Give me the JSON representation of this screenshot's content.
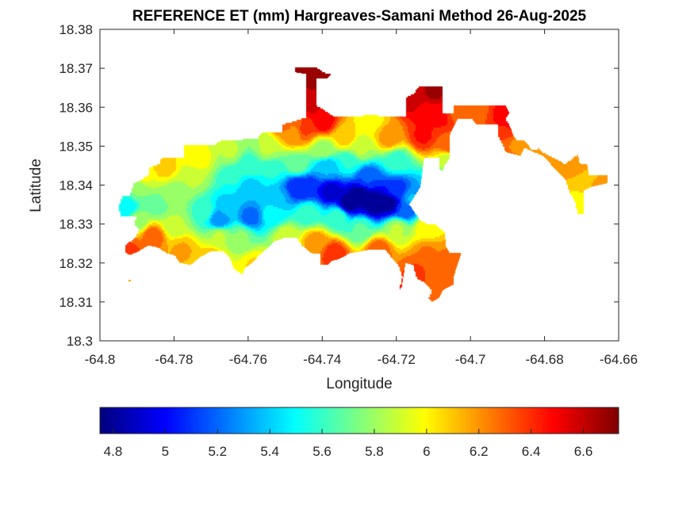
{
  "chart_data": {
    "type": "heatmap",
    "title": "REFERENCE ET (mm) Hargreaves-Samani Method  26-Aug-2025",
    "xlabel": "Longitude",
    "ylabel": "Latitude",
    "xlim": [
      -64.8,
      -64.66
    ],
    "ylim": [
      18.3,
      18.38
    ],
    "xticks": [
      -64.8,
      -64.78,
      -64.76,
      -64.74,
      -64.72,
      -64.7,
      -64.68,
      -64.66
    ],
    "xtick_labels": [
      "-64.8",
      "-64.78",
      "-64.76",
      "-64.74",
      "-64.72",
      "-64.7",
      "-64.68",
      "-64.66"
    ],
    "yticks": [
      18.3,
      18.31,
      18.32,
      18.33,
      18.34,
      18.35,
      18.36,
      18.37,
      18.38
    ],
    "ytick_labels": [
      "18.3",
      "18.31",
      "18.32",
      "18.33",
      "18.34",
      "18.35",
      "18.36",
      "18.37",
      "18.38"
    ],
    "grid": false,
    "colormap": "jet",
    "colorbar": {
      "orientation": "horizontal",
      "placement": "bottom",
      "range": [
        4.75,
        6.735
      ],
      "ticks": [
        4.8,
        5,
        5.2,
        5.4,
        5.6,
        5.8,
        6,
        6.2,
        6.4,
        6.6
      ],
      "tick_labels": [
        "4.8",
        "5",
        "5.2",
        "5.4",
        "5.6",
        "5.8",
        "6",
        "6.2",
        "6.4",
        "6.6"
      ]
    },
    "contour_levels": 20,
    "value_range_observed": [
      4.75,
      6.73
    ],
    "points": [
      [
        -64.795,
        18.3365,
        5.55
      ],
      [
        -64.793,
        18.3345,
        5.45
      ],
      [
        -64.79,
        18.339,
        5.75
      ],
      [
        -64.79,
        18.331,
        5.8
      ],
      [
        -64.792,
        18.3235,
        6.35
      ],
      [
        -64.786,
        18.327,
        6.3
      ],
      [
        -64.788,
        18.3425,
        5.95
      ],
      [
        -64.783,
        18.345,
        6.1
      ],
      [
        -64.785,
        18.335,
        5.7
      ],
      [
        -64.78,
        18.338,
        5.8
      ],
      [
        -64.78,
        18.33,
        5.85
      ],
      [
        -64.778,
        18.3235,
        6.15
      ],
      [
        -64.774,
        18.347,
        6.0
      ],
      [
        -64.775,
        18.342,
        5.85
      ],
      [
        -64.772,
        18.3335,
        5.6
      ],
      [
        -64.768,
        18.3315,
        5.25
      ],
      [
        -64.766,
        18.3345,
        5.4
      ],
      [
        -64.768,
        18.327,
        5.85
      ],
      [
        -64.77,
        18.3215,
        6.1
      ],
      [
        -64.765,
        18.349,
        5.85
      ],
      [
        -64.764,
        18.342,
        5.55
      ],
      [
        -64.76,
        18.3455,
        5.6
      ],
      [
        -64.76,
        18.339,
        5.35
      ],
      [
        -64.7595,
        18.332,
        5.2
      ],
      [
        -64.762,
        18.327,
        5.75
      ],
      [
        -64.758,
        18.3195,
        6.05
      ],
      [
        -64.755,
        18.3495,
        5.85
      ],
      [
        -64.754,
        18.344,
        5.55
      ],
      [
        -64.752,
        18.337,
        5.35
      ],
      [
        -64.7535,
        18.3325,
        5.5
      ],
      [
        -64.75,
        18.327,
        5.9
      ],
      [
        -64.748,
        18.3535,
        6.2
      ],
      [
        -64.747,
        18.3455,
        5.7
      ],
      [
        -64.747,
        18.3395,
        5.05
      ],
      [
        -64.744,
        18.3395,
        5.05
      ],
      [
        -64.744,
        18.333,
        5.6
      ],
      [
        -64.742,
        18.3255,
        6.2
      ],
      [
        -64.74,
        18.3495,
        5.8
      ],
      [
        -64.739,
        18.3445,
        5.35
      ],
      [
        -64.738,
        18.3385,
        4.9
      ],
      [
        -64.736,
        18.332,
        5.6
      ],
      [
        -64.737,
        18.3225,
        6.4
      ],
      [
        -64.733,
        18.3355,
        4.8
      ],
      [
        -64.73,
        18.3375,
        4.78
      ],
      [
        -64.728,
        18.342,
        5.15
      ],
      [
        -64.726,
        18.3355,
        4.75
      ],
      [
        -64.722,
        18.3355,
        4.8
      ],
      [
        -64.72,
        18.339,
        5.1
      ],
      [
        -64.718,
        18.334,
        5.15
      ],
      [
        -64.716,
        18.3365,
        5.35
      ],
      [
        -64.73,
        18.329,
        5.65
      ],
      [
        -64.72,
        18.329,
        5.85
      ],
      [
        -64.725,
        18.3235,
        6.3
      ],
      [
        -64.712,
        18.329,
        6.0
      ],
      [
        -64.712,
        18.3225,
        6.25
      ],
      [
        -64.706,
        18.321,
        6.25
      ],
      [
        -64.715,
        18.318,
        6.35
      ],
      [
        -64.708,
        18.313,
        6.25
      ],
      [
        -64.704,
        18.318,
        6.3
      ],
      [
        -64.717,
        18.3125,
        6.45
      ],
      [
        -64.733,
        18.346,
        5.55
      ],
      [
        -64.734,
        18.3525,
        6.1
      ],
      [
        -64.727,
        18.357,
        6.0
      ],
      [
        -64.73,
        18.3495,
        5.85
      ],
      [
        -64.722,
        18.3525,
        6.2
      ],
      [
        -64.72,
        18.3465,
        5.6
      ],
      [
        -64.74,
        18.3565,
        6.5
      ],
      [
        -64.743,
        18.3605,
        6.55
      ],
      [
        -64.743,
        18.3685,
        6.7
      ],
      [
        -64.738,
        18.369,
        6.7
      ],
      [
        -64.745,
        18.3545,
        6.35
      ],
      [
        -64.75,
        18.3555,
        6.25
      ],
      [
        -64.716,
        18.3625,
        6.6
      ],
      [
        -64.712,
        18.359,
        6.5
      ],
      [
        -64.71,
        18.364,
        6.65
      ],
      [
        -64.713,
        18.353,
        6.45
      ],
      [
        -64.708,
        18.3575,
        6.45
      ],
      [
        -64.704,
        18.359,
        6.3
      ],
      [
        -64.698,
        18.3595,
        6.3
      ],
      [
        -64.692,
        18.3585,
        6.45
      ],
      [
        -64.6875,
        18.356,
        6.45
      ],
      [
        -64.706,
        18.3465,
        5.85
      ],
      [
        -64.706,
        18.3505,
        6.3
      ],
      [
        -64.685,
        18.351,
        6.15
      ],
      [
        -64.681,
        18.349,
        6.15
      ],
      [
        -64.675,
        18.347,
        6.15
      ],
      [
        -64.672,
        18.3445,
        6.2
      ],
      [
        -64.67,
        18.341,
        6.05
      ],
      [
        -64.671,
        18.3355,
        6.0
      ],
      [
        -64.666,
        18.34,
        6.15
      ],
      [
        -64.688,
        18.3435,
        6.4
      ],
      [
        -64.709,
        18.3395,
        5.35
      ]
    ],
    "land_outline": [
      [
        -64.794,
        18.3375
      ],
      [
        -64.792,
        18.3375
      ],
      [
        -64.791,
        18.3405
      ],
      [
        -64.787,
        18.3425
      ],
      [
        -64.787,
        18.3445
      ],
      [
        -64.784,
        18.3455
      ],
      [
        -64.7835,
        18.347
      ],
      [
        -64.7775,
        18.347
      ],
      [
        -64.7775,
        18.3505
      ],
      [
        -64.769,
        18.3505
      ],
      [
        -64.7675,
        18.3515
      ],
      [
        -64.7575,
        18.352
      ],
      [
        -64.7565,
        18.3535
      ],
      [
        -64.751,
        18.3535
      ],
      [
        -64.751,
        18.3555
      ],
      [
        -64.7445,
        18.3575
      ],
      [
        -64.7445,
        18.3685
      ],
      [
        -64.7475,
        18.369
      ],
      [
        -64.7475,
        18.3705
      ],
      [
        -64.742,
        18.3705
      ],
      [
        -64.7395,
        18.369
      ],
      [
        -64.7375,
        18.3685
      ],
      [
        -64.7385,
        18.3675
      ],
      [
        -64.7415,
        18.3675
      ],
      [
        -64.7415,
        18.3605
      ],
      [
        -64.7365,
        18.3575
      ],
      [
        -64.727,
        18.358
      ],
      [
        -64.7175,
        18.3575
      ],
      [
        -64.7175,
        18.3625
      ],
      [
        -64.7155,
        18.3635
      ],
      [
        -64.714,
        18.3655
      ],
      [
        -64.7075,
        18.3655
      ],
      [
        -64.7075,
        18.3585
      ],
      [
        -64.7045,
        18.3585
      ],
      [
        -64.7045,
        18.3605
      ],
      [
        -64.6905,
        18.3605
      ],
      [
        -64.6895,
        18.3585
      ],
      [
        -64.6905,
        18.357
      ],
      [
        -64.6895,
        18.3555
      ],
      [
        -64.6885,
        18.353
      ],
      [
        -64.6875,
        18.3515
      ],
      [
        -64.6855,
        18.3515
      ],
      [
        -64.6845,
        18.3505
      ],
      [
        -64.6835,
        18.349
      ],
      [
        -64.6815,
        18.3495
      ],
      [
        -64.6805,
        18.3485
      ],
      [
        -64.6765,
        18.3465
      ],
      [
        -64.6745,
        18.3455
      ],
      [
        -64.671,
        18.348
      ],
      [
        -64.6705,
        18.3455
      ],
      [
        -64.6685,
        18.3455
      ],
      [
        -64.668,
        18.3425
      ],
      [
        -64.663,
        18.3425
      ],
      [
        -64.663,
        18.3405
      ],
      [
        -64.6675,
        18.3395
      ],
      [
        -64.6695,
        18.3385
      ],
      [
        -64.6695,
        18.3325
      ],
      [
        -64.671,
        18.3325
      ],
      [
        -64.672,
        18.336
      ],
      [
        -64.6735,
        18.3385
      ],
      [
        -64.6745,
        18.3415
      ],
      [
        -64.6775,
        18.3445
      ],
      [
        -64.6805,
        18.3475
      ],
      [
        -64.6855,
        18.3495
      ],
      [
        -64.6865,
        18.3475
      ],
      [
        -64.6905,
        18.3485
      ],
      [
        -64.6925,
        18.3525
      ],
      [
        -64.6925,
        18.3555
      ],
      [
        -64.6985,
        18.3555
      ],
      [
        -64.6995,
        18.357
      ],
      [
        -64.7035,
        18.357
      ],
      [
        -64.7045,
        18.355
      ],
      [
        -64.7055,
        18.353
      ],
      [
        -64.7055,
        18.347
      ],
      [
        -64.707,
        18.345
      ],
      [
        -64.7075,
        18.3435
      ],
      [
        -64.7085,
        18.344
      ],
      [
        -64.7085,
        18.347
      ],
      [
        -64.7105,
        18.347
      ],
      [
        -64.7125,
        18.347
      ],
      [
        -64.7135,
        18.3395
      ],
      [
        -64.7155,
        18.3365
      ],
      [
        -64.7165,
        18.335
      ],
      [
        -64.715,
        18.333
      ],
      [
        -64.7135,
        18.331
      ],
      [
        -64.7115,
        18.33
      ],
      [
        -64.7095,
        18.33
      ],
      [
        -64.707,
        18.328
      ],
      [
        -64.7065,
        18.324
      ],
      [
        -64.7055,
        18.3225
      ],
      [
        -64.7025,
        18.3225
      ],
      [
        -64.7035,
        18.3195
      ],
      [
        -64.7045,
        18.3165
      ],
      [
        -64.7045,
        18.3145
      ],
      [
        -64.7075,
        18.313
      ],
      [
        -64.7085,
        18.311
      ],
      [
        -64.7105,
        18.31
      ],
      [
        -64.7115,
        18.311
      ],
      [
        -64.7105,
        18.313
      ],
      [
        -64.7125,
        18.315
      ],
      [
        -64.7145,
        18.316
      ],
      [
        -64.715,
        18.3175
      ],
      [
        -64.7155,
        18.3195
      ],
      [
        -64.7175,
        18.32
      ],
      [
        -64.7185,
        18.314
      ],
      [
        -64.7195,
        18.3125
      ],
      [
        -64.7185,
        18.3165
      ],
      [
        -64.7195,
        18.3195
      ],
      [
        -64.7215,
        18.3215
      ],
      [
        -64.723,
        18.3235
      ],
      [
        -64.7265,
        18.3235
      ],
      [
        -64.7295,
        18.323
      ],
      [
        -64.7325,
        18.3225
      ],
      [
        -64.7355,
        18.321
      ],
      [
        -64.7375,
        18.3205
      ],
      [
        -64.7385,
        18.3195
      ],
      [
        -64.7405,
        18.3195
      ],
      [
        -64.7405,
        18.3225
      ],
      [
        -64.743,
        18.3225
      ],
      [
        -64.7455,
        18.3245
      ],
      [
        -64.747,
        18.3265
      ],
      [
        -64.75,
        18.3265
      ],
      [
        -64.753,
        18.3255
      ],
      [
        -64.7545,
        18.324
      ],
      [
        -64.757,
        18.322
      ],
      [
        -64.759,
        18.32
      ],
      [
        -64.761,
        18.3185
      ],
      [
        -64.7615,
        18.317
      ],
      [
        -64.764,
        18.3185
      ],
      [
        -64.765,
        18.3215
      ],
      [
        -64.767,
        18.323
      ],
      [
        -64.77,
        18.323
      ],
      [
        -64.773,
        18.3215
      ],
      [
        -64.7755,
        18.3195
      ],
      [
        -64.7785,
        18.32
      ],
      [
        -64.78,
        18.322
      ],
      [
        -64.782,
        18.3225
      ],
      [
        -64.7845,
        18.324
      ],
      [
        -64.787,
        18.3245
      ],
      [
        -64.7895,
        18.323
      ],
      [
        -64.792,
        18.322
      ],
      [
        -64.7935,
        18.323
      ],
      [
        -64.793,
        18.325
      ],
      [
        -64.7905,
        18.3265
      ],
      [
        -64.7895,
        18.3285
      ],
      [
        -64.791,
        18.33
      ],
      [
        -64.79,
        18.332
      ],
      [
        -64.7945,
        18.332
      ],
      [
        -64.795,
        18.3345
      ]
    ]
  }
}
